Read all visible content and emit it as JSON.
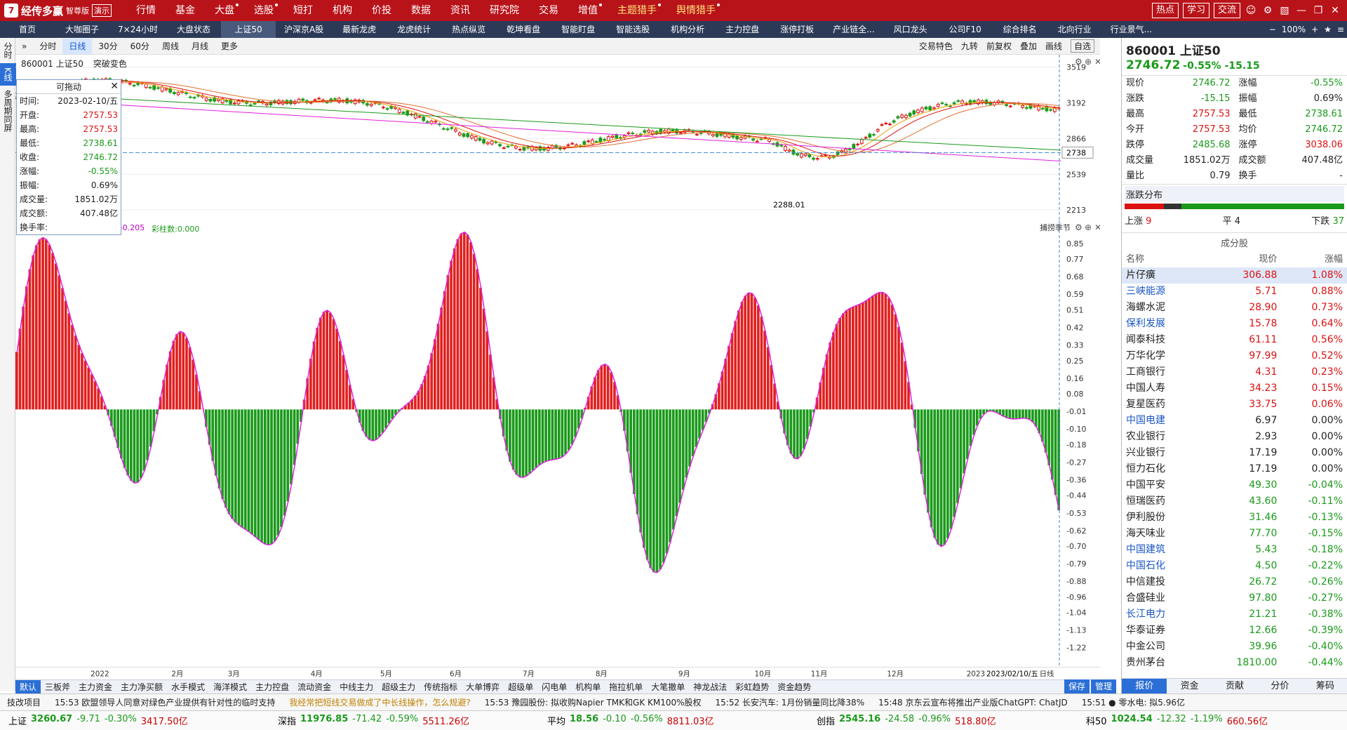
{
  "app": {
    "name": "经传多赢",
    "edition": "智尊版",
    "demo_label": "演示"
  },
  "menu": [
    "行情",
    "基金",
    "大盘",
    "选股",
    "短打",
    "机构",
    "价投",
    "数据",
    "资讯",
    "研究院",
    "交易",
    "增值",
    "主题猎手",
    "舆情猎手"
  ],
  "topright": {
    "buttons": [
      "热点",
      "学习",
      "交流"
    ]
  },
  "tabs": [
    "首页",
    "大咖圈子",
    "7×24小时",
    "大盘状态",
    "上证50",
    "沪深京A股",
    "最新龙虎",
    "龙虎统计",
    "热点纵览",
    "乾坤看盘",
    "智能盯盘",
    "智能选股",
    "机构分析",
    "主力控盘",
    "涨停打板",
    "产业链全...",
    "风口龙头",
    "公司F10",
    "综合排名",
    "北向行业",
    "行业景气..."
  ],
  "tabright": {
    "zoom": "100%"
  },
  "leftrail": [
    "分时",
    "K线",
    "多周期同屏"
  ],
  "chart_toolbar": {
    "periods": [
      "分时",
      "日线",
      "30分",
      "60分",
      "周线",
      "月线",
      "更多"
    ],
    "active": "日线",
    "tools": [
      "交易特色",
      "九转",
      "前复权",
      "叠加",
      "画线",
      "自选"
    ]
  },
  "chart": {
    "symbol_label": "860001 上证50",
    "break_label": "突破变色",
    "y_ticks": [
      "3519",
      "3192",
      "2866",
      "2539",
      "2213"
    ],
    "current_price_tag": "2738",
    "low_label": "2288.01"
  },
  "indicator": {
    "label_value": "2:-0.205",
    "colorbar": "彩柱数:0.000",
    "right_label": "捕捞季节",
    "y_ticks": [
      "0.85",
      "0.77",
      "0.68",
      "0.59",
      "0.51",
      "0.42",
      "0.33",
      "0.25",
      "0.16",
      "0.08",
      "-0.01",
      "-0.10",
      "-0.18",
      "-0.27",
      "-0.36",
      "-0.44",
      "-0.53",
      "-0.62",
      "-0.70",
      "-0.79",
      "-0.88",
      "-0.96",
      "-1.04",
      "-1.13",
      "-1.22"
    ]
  },
  "popup": {
    "title": "可拖动",
    "rows": [
      [
        "时间:",
        "2023-02-10/五"
      ],
      [
        "开盘:",
        "2757.53"
      ],
      [
        "最高:",
        "2757.53"
      ],
      [
        "最低:",
        "2738.61"
      ],
      [
        "收盘:",
        "2746.72"
      ],
      [
        "涨幅:",
        "-0.55%"
      ],
      [
        "振幅:",
        "0.69%"
      ],
      [
        "成交量:",
        "1851.02万"
      ],
      [
        "成交额:",
        "407.48亿"
      ],
      [
        "换手率:",
        ""
      ]
    ]
  },
  "xaxis": [
    "2022",
    "2月",
    "3月",
    "4月",
    "5月",
    "6月",
    "7月",
    "8月",
    "9月",
    "10月",
    "11月",
    "12月",
    "2023",
    "2023/02/10/五",
    "日线"
  ],
  "bottom_tabs": [
    "默认",
    "三板斧",
    "主力资金",
    "主力净买额",
    "水手模式",
    "海洋模式",
    "主力控盘",
    "流动资金",
    "中线主力",
    "超级主力",
    "传统指标",
    "大单博弈",
    "超级单",
    "闪电单",
    "机构单",
    "拖拉机单",
    "大笔撤单",
    "神龙战法",
    "彩虹趋势",
    "资金趋势"
  ],
  "bottom_right": [
    "保存",
    "管理"
  ],
  "quote": {
    "code": "860001 上证50",
    "price": "2746.72",
    "change": "-0.55% -15.15",
    "rows": [
      [
        "现价",
        "2746.72",
        "涨幅",
        "-0.55%"
      ],
      [
        "涨跌",
        "-15.15",
        "振幅",
        "0.69%"
      ],
      [
        "最高",
        "2757.53",
        "最低",
        "2738.61"
      ],
      [
        "今开",
        "2757.53",
        "均价",
        "2746.72"
      ],
      [
        "跌停",
        "2485.68",
        "涨停",
        "3038.06"
      ],
      [
        "成交量",
        "1851.02万",
        "成交额",
        "407.48亿"
      ],
      [
        "量比",
        "0.79",
        "换手",
        "-"
      ]
    ],
    "dist_title": "涨跌分布",
    "up_label": "上涨",
    "up_count": "9",
    "flat_label": "平",
    "flat_count": "4",
    "down_label": "下跌",
    "down_count": "37"
  },
  "constituents": {
    "title": "成分股",
    "headers": [
      "名称",
      "现价",
      "涨幅"
    ],
    "rows": [
      [
        "片仔癀",
        "306.88",
        "1.08%"
      ],
      [
        "三峡能源",
        "5.71",
        "0.88%"
      ],
      [
        "海螺水泥",
        "28.90",
        "0.73%"
      ],
      [
        "保利发展",
        "15.78",
        "0.64%"
      ],
      [
        "闻泰科技",
        "61.11",
        "0.56%"
      ],
      [
        "万华化学",
        "97.99",
        "0.52%"
      ],
      [
        "工商银行",
        "4.31",
        "0.23%"
      ],
      [
        "中国人寿",
        "34.23",
        "0.15%"
      ],
      [
        "复星医药",
        "33.75",
        "0.06%"
      ],
      [
        "中国电建",
        "6.97",
        "0.00%"
      ],
      [
        "农业银行",
        "2.93",
        "0.00%"
      ],
      [
        "兴业银行",
        "17.19",
        "0.00%"
      ],
      [
        "恒力石化",
        "17.19",
        "0.00%"
      ],
      [
        "中国平安",
        "49.30",
        "-0.04%"
      ],
      [
        "恒瑞医药",
        "43.60",
        "-0.11%"
      ],
      [
        "伊利股份",
        "31.46",
        "-0.13%"
      ],
      [
        "海天味业",
        "77.70",
        "-0.15%"
      ],
      [
        "中国建筑",
        "5.43",
        "-0.18%"
      ],
      [
        "中国石化",
        "4.50",
        "-0.22%"
      ],
      [
        "中信建投",
        "26.72",
        "-0.26%"
      ],
      [
        "合盛硅业",
        "97.80",
        "-0.27%"
      ],
      [
        "长江电力",
        "21.21",
        "-0.38%"
      ],
      [
        "华泰证券",
        "12.66",
        "-0.39%"
      ],
      [
        "中金公司",
        "39.96",
        "-0.40%"
      ],
      [
        "贵州茅台",
        "1810.00",
        "-0.44%"
      ]
    ]
  },
  "rp_tabs": [
    "报价",
    "资金",
    "贡献",
    "分价",
    "筹码"
  ],
  "news": [
    "技改项目",
    "15:53 欧盟领导人同意对绿色产业提供有针对性的临时支持",
    "我经常把短线交易做成了中长线操作，怎么规避?",
    "15:53 豫园股份: 拟收购Napier TMK和GK KM100%股权",
    "15:52 长安汽车: 1月份销量同比降38%",
    "15:48 京东云宣布将推出产业版ChatGPT: ChatJD",
    "15:51 ● 零水电: 拟5.96亿"
  ],
  "status": [
    [
      "上证",
      "3260.67",
      "-9.71",
      "-0.30%",
      "3417.50亿"
    ],
    [
      "深指",
      "11976.85",
      "-71.42",
      "-0.59%",
      "5511.26亿"
    ],
    [
      "平均",
      "18.56",
      "-0.10",
      "-0.56%",
      "8811.03亿"
    ],
    [
      "创指",
      "2545.16",
      "-24.58",
      "-0.96%",
      "518.80亿"
    ],
    [
      "科50",
      "1024.54",
      "-12.32",
      "-1.19%",
      "660.56亿"
    ]
  ]
}
